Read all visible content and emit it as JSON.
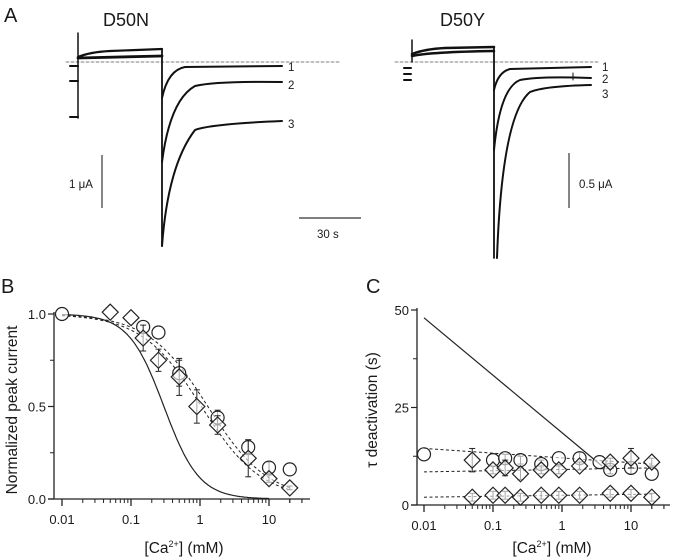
{
  "figure": {
    "panels": {
      "A": {
        "letter": "A",
        "left_title": "D50N",
        "right_title": "D50Y",
        "left_trace_labels": [
          "1",
          "2",
          "3"
        ],
        "right_trace_labels": [
          "1",
          "2",
          "3"
        ],
        "left_scale_current": "1 μA",
        "right_scale_current": "0.5 μA",
        "time_scale": "30 s"
      },
      "B": {
        "letter": "B"
      },
      "C": {
        "letter": "C"
      }
    }
  },
  "chart_data": [
    {
      "id": "B",
      "type": "scatter",
      "title": "",
      "xlabel": "[Ca2+] (mM)",
      "xlabel_parts": {
        "pre": "[Ca",
        "sup": "2+",
        "post": "] (mM)"
      },
      "ylabel": "Normalized peak current",
      "xscale": "log",
      "xlim": [
        0.0085,
        50
      ],
      "ylim": [
        0,
        1.05
      ],
      "x_ticks": [
        0.01,
        0.1,
        1,
        10
      ],
      "x_tick_labels": [
        "0.01",
        "0.1",
        "1",
        "10"
      ],
      "y_ticks": [
        0,
        0.5,
        1
      ],
      "y_tick_labels": [
        "0.0",
        "0.5",
        "1.0"
      ],
      "y_minor_ticks": [
        0.25,
        0.75
      ],
      "grid": false,
      "series": [
        {
          "name": "circles",
          "marker": "circle",
          "x": [
            0.01,
            0.15,
            0.25,
            0.5,
            1.8,
            5,
            10,
            20
          ],
          "y": [
            1.0,
            0.93,
            0.9,
            0.68,
            0.44,
            0.28,
            0.17,
            0.16
          ],
          "err": [
            0,
            0,
            0,
            0.07,
            0.04,
            0.04,
            0.03,
            0
          ]
        },
        {
          "name": "diamonds",
          "marker": "diamond",
          "x": [
            0.05,
            0.1,
            0.15,
            0.25,
            0.5,
            0.9,
            1.8,
            5,
            10,
            20
          ],
          "y": [
            1.01,
            0.98,
            0.87,
            0.75,
            0.66,
            0.5,
            0.4,
            0.22,
            0.11,
            0.06
          ],
          "err": [
            0,
            0,
            0.07,
            0.06,
            0.1,
            0.09,
            0.05,
            0.1,
            0.02,
            0.01
          ]
        }
      ],
      "fits": [
        {
          "name": "fit-circles",
          "style": "dashed",
          "ic50": 1.3,
          "n": 1.0
        },
        {
          "name": "fit-diamonds",
          "style": "dashed",
          "ic50": 1.05,
          "n": 1.0
        },
        {
          "name": "reference-curve",
          "style": "solid",
          "ic50": 0.3,
          "n": 1.7
        }
      ]
    },
    {
      "id": "C",
      "type": "scatter",
      "title": "",
      "xlabel": "[Ca2+] (mM)",
      "xlabel_parts": {
        "pre": "[Ca",
        "sup": "2+",
        "post": "] (mM)"
      },
      "ylabel": "τ deactivation (s)",
      "xscale": "log",
      "xlim": [
        0.0085,
        50
      ],
      "ylim": [
        0,
        50
      ],
      "x_ticks": [
        0.01,
        0.1,
        1,
        10
      ],
      "x_tick_labels": [
        "0.01",
        "0.1",
        "1",
        "10"
      ],
      "y_ticks": [
        0,
        25,
        50
      ],
      "y_tick_labels": [
        "0",
        "25",
        "50"
      ],
      "y_minor_ticks": [
        12.5,
        37.5
      ],
      "grid": false,
      "series": [
        {
          "name": "circles-slow",
          "marker": "circle",
          "x": [
            0.01,
            0.1,
            0.15,
            0.25,
            0.5,
            0.9,
            1.8,
            3.5,
            5,
            10,
            20
          ],
          "y": [
            13,
            11.5,
            12,
            11.5,
            10.5,
            12,
            12,
            11,
            9,
            9.5,
            8
          ],
          "err": [
            0,
            0,
            1,
            1,
            1,
            0,
            1.5,
            0,
            1,
            1.5,
            0
          ]
        },
        {
          "name": "diamonds-slow",
          "marker": "diamond",
          "x": [
            0.05,
            0.1,
            0.15,
            0.25,
            0.5,
            0.9,
            1.8,
            5,
            10,
            20
          ],
          "y": [
            11.5,
            9,
            9.5,
            8,
            9,
            9,
            10,
            11,
            12,
            11
          ],
          "err": [
            3,
            1,
            2,
            1.5,
            1,
            1,
            1,
            1,
            2.5,
            1
          ]
        },
        {
          "name": "diamonds-fast",
          "marker": "diamond",
          "x": [
            0.05,
            0.1,
            0.15,
            0.25,
            0.5,
            0.9,
            1.8,
            5,
            10,
            20
          ],
          "y": [
            2,
            2.5,
            2.5,
            2,
            2.5,
            2.5,
            2.5,
            3,
            3,
            2
          ],
          "err": [
            1,
            1,
            1,
            1,
            1,
            1,
            1,
            1,
            1,
            1
          ]
        }
      ],
      "fits": [
        {
          "name": "trend-circles",
          "style": "dashed",
          "x": [
            0.01,
            20
          ],
          "y": [
            14.5,
            10.5
          ]
        },
        {
          "name": "trend-diamonds",
          "style": "dashed",
          "x": [
            0.01,
            20
          ],
          "y": [
            8.5,
            9.5
          ]
        },
        {
          "name": "trend-fast",
          "style": "dashed",
          "x": [
            0.01,
            20
          ],
          "y": [
            2,
            2.8
          ]
        },
        {
          "name": "reference-line",
          "style": "solid",
          "x": [
            0.01,
            3.8
          ],
          "y": [
            48,
            10
          ]
        }
      ]
    }
  ]
}
